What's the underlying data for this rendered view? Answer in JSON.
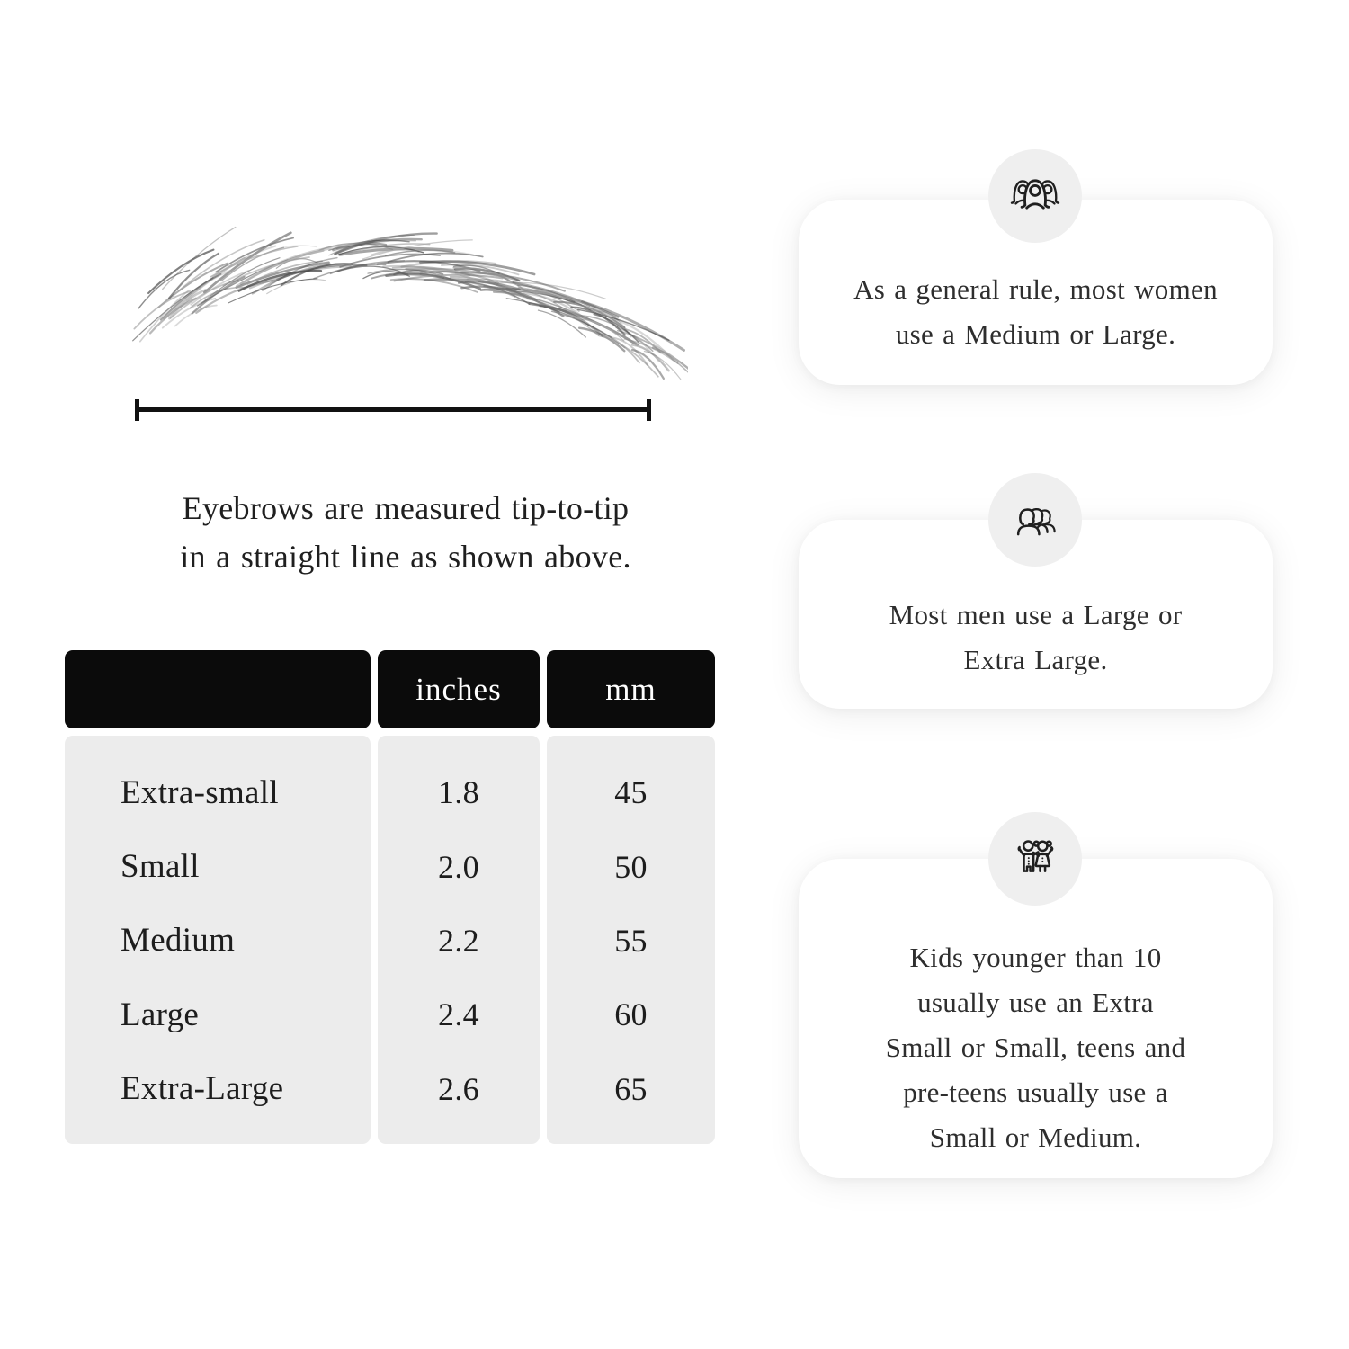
{
  "measurement": {
    "caption_lines": [
      "Eyebrows are measured tip-to-tip",
      "in a straight line as shown above."
    ]
  },
  "size_table": {
    "columns": [
      "",
      "inches",
      "mm"
    ],
    "rows": [
      [
        "Extra-small",
        "1.8",
        "45"
      ],
      [
        "Small",
        "2.0",
        "50"
      ],
      [
        "Medium",
        "2.2",
        "55"
      ],
      [
        "Large",
        "2.4",
        "60"
      ],
      [
        "Extra-Large",
        "2.6",
        "65"
      ]
    ]
  },
  "cards": [
    {
      "icon": "women-group-icon",
      "text_lines": [
        "As a general rule, most women",
        "use a Medium or Large."
      ]
    },
    {
      "icon": "men-group-icon",
      "text_lines": [
        "Most men use a Large or",
        "Extra Large."
      ]
    },
    {
      "icon": "kids-icon",
      "text_lines": [
        "Kids younger than 10",
        "usually use an Extra",
        "Small or Small, teens and",
        "pre-teens usually use a",
        "Small or Medium."
      ]
    }
  ],
  "colors": {
    "table-header-bg": "#0b0b0b",
    "table-header-text": "#ffffff",
    "table-body-bg": "#ececec",
    "text-primary": "#1d1d1d",
    "card-bg": "#ffffff",
    "icon-circle-bg": "#efefef",
    "icon-stroke": "#1f1f1f",
    "line-color": "#111111",
    "page-bg": "#ffffff"
  }
}
